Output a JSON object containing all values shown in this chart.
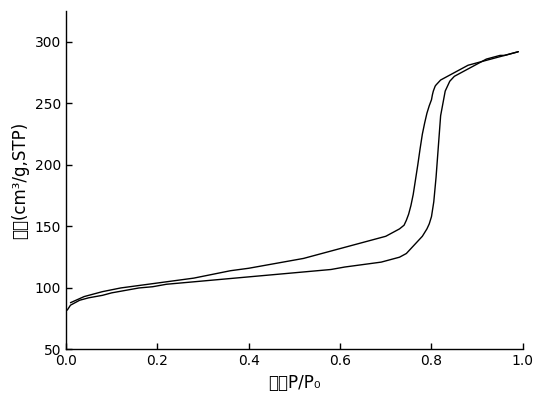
{
  "title": "",
  "xlabel": "比压P/P₀",
  "ylabel": "孔容(cm³/g,STP)",
  "xlim": [
    0.0,
    1.0
  ],
  "ylim": [
    50,
    325
  ],
  "yticks": [
    50,
    100,
    150,
    200,
    250,
    300
  ],
  "xticks": [
    0.0,
    0.2,
    0.4,
    0.6,
    0.8,
    1.0
  ],
  "line_color": "#000000",
  "bg_color": "#ffffff",
  "adsorption_x": [
    0.003,
    0.01,
    0.03,
    0.05,
    0.08,
    0.1,
    0.13,
    0.16,
    0.19,
    0.22,
    0.25,
    0.28,
    0.31,
    0.34,
    0.37,
    0.4,
    0.43,
    0.46,
    0.49,
    0.52,
    0.55,
    0.58,
    0.61,
    0.63,
    0.65,
    0.67,
    0.69,
    0.71,
    0.72,
    0.73,
    0.74,
    0.745,
    0.75,
    0.755,
    0.76,
    0.765,
    0.77,
    0.775,
    0.78,
    0.785,
    0.79,
    0.795,
    0.8,
    0.805,
    0.81,
    0.815,
    0.82,
    0.83,
    0.84,
    0.85,
    0.86,
    0.87,
    0.88,
    0.89,
    0.9,
    0.91,
    0.92,
    0.93,
    0.94,
    0.95,
    0.96,
    0.97,
    0.98,
    0.99
  ],
  "adsorption_y": [
    82,
    86,
    90,
    92,
    94,
    96,
    98,
    100,
    101,
    103,
    104,
    105,
    106,
    107,
    108,
    109,
    110,
    111,
    112,
    113,
    114,
    115,
    117,
    118,
    119,
    120,
    121,
    123,
    124,
    125,
    127,
    128,
    130,
    132,
    134,
    136,
    138,
    140,
    142,
    145,
    148,
    152,
    158,
    170,
    190,
    215,
    240,
    260,
    268,
    272,
    274,
    276,
    278,
    280,
    282,
    284,
    286,
    287,
    288,
    289,
    289,
    290,
    291,
    292
  ],
  "desorption_x": [
    0.99,
    0.98,
    0.97,
    0.96,
    0.95,
    0.94,
    0.93,
    0.92,
    0.91,
    0.9,
    0.89,
    0.88,
    0.87,
    0.86,
    0.855,
    0.85,
    0.845,
    0.84,
    0.835,
    0.83,
    0.825,
    0.82,
    0.815,
    0.81,
    0.808,
    0.806,
    0.804,
    0.802,
    0.8,
    0.795,
    0.79,
    0.785,
    0.78,
    0.775,
    0.77,
    0.765,
    0.76,
    0.755,
    0.75,
    0.745,
    0.74,
    0.73,
    0.72,
    0.71,
    0.7,
    0.69,
    0.68,
    0.67,
    0.65,
    0.63,
    0.61,
    0.59,
    0.57,
    0.55,
    0.52,
    0.49,
    0.46,
    0.43,
    0.4,
    0.36,
    0.32,
    0.28,
    0.24,
    0.2,
    0.16,
    0.12,
    0.08,
    0.04,
    0.01
  ],
  "desorption_y": [
    292,
    291,
    290,
    289,
    288,
    287,
    286,
    285,
    284,
    283,
    282,
    281,
    279,
    277,
    276,
    275,
    274,
    273,
    272,
    271,
    270,
    269,
    267,
    265,
    264,
    262,
    260,
    257,
    253,
    248,
    242,
    234,
    225,
    213,
    200,
    188,
    176,
    167,
    160,
    155,
    151,
    148,
    146,
    144,
    142,
    141,
    140,
    139,
    137,
    135,
    133,
    131,
    129,
    127,
    124,
    122,
    120,
    118,
    116,
    114,
    111,
    108,
    106,
    104,
    102,
    100,
    97,
    93,
    88
  ]
}
